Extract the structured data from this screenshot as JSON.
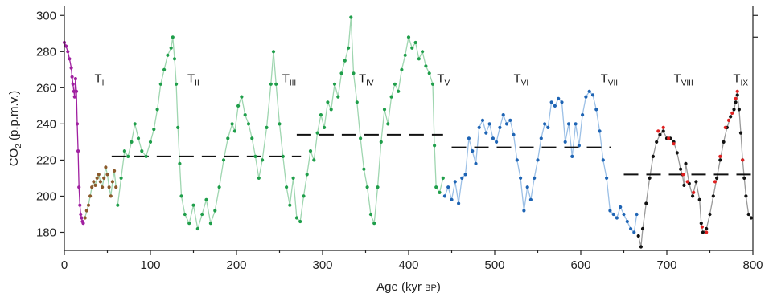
{
  "chart_data": {
    "type": "line",
    "title": "",
    "xlabel_main": "Age (kyr ",
    "xlabel_unit": "BP",
    "xlabel_close": ")",
    "ylabel_prefix": "CO",
    "ylabel_sub": "2",
    "ylabel_suffix": " (p.p.m.v.)",
    "xlim": [
      0,
      800
    ],
    "ylim": [
      170,
      305
    ],
    "xticks": [
      0,
      100,
      200,
      300,
      400,
      500,
      600,
      700,
      800
    ],
    "yticks": [
      180,
      200,
      220,
      240,
      260,
      280,
      300
    ],
    "colors": {
      "dome_c_recent": "#a020a0",
      "brown": "#8b5a2b",
      "green": "#1f9e4a",
      "blue": "#1e64b4",
      "black": "#111111",
      "red": "#e02020",
      "green_line": "#9fd6b0",
      "blue_line": "#9cc0e6",
      "black_line": "#999999"
    },
    "series": [
      {
        "color_key": "dome_c_recent",
        "line_key": "dome_c_recent",
        "points": [
          [
            0,
            285
          ],
          [
            2,
            283
          ],
          [
            4,
            280
          ],
          [
            6,
            276
          ],
          [
            8,
            271
          ],
          [
            9,
            266
          ],
          [
            10,
            262
          ],
          [
            11,
            258
          ],
          [
            12,
            255
          ],
          [
            13,
            265
          ],
          [
            14,
            258
          ],
          [
            15,
            240
          ],
          [
            16,
            225
          ],
          [
            17,
            205
          ],
          [
            18,
            195
          ],
          [
            19,
            190
          ],
          [
            20,
            188
          ],
          [
            21,
            186
          ],
          [
            22,
            185
          ]
        ]
      },
      {
        "color_key": "brown",
        "line_key": "green_line",
        "points": [
          [
            24,
            188
          ],
          [
            26,
            192
          ],
          [
            28,
            195
          ],
          [
            30,
            200
          ],
          [
            32,
            205
          ],
          [
            34,
            208
          ],
          [
            36,
            206
          ],
          [
            38,
            210
          ],
          [
            40,
            212
          ],
          [
            42,
            208
          ],
          [
            44,
            205
          ],
          [
            46,
            210
          ],
          [
            48,
            216
          ],
          [
            50,
            212
          ],
          [
            52,
            205
          ],
          [
            54,
            200
          ],
          [
            56,
            208
          ],
          [
            58,
            214
          ],
          [
            60,
            205
          ]
        ]
      },
      {
        "color_key": "green",
        "line_key": "green_line",
        "points": [
          [
            62,
            195
          ],
          [
            66,
            210
          ],
          [
            70,
            225
          ],
          [
            74,
            222
          ],
          [
            78,
            230
          ],
          [
            82,
            240
          ],
          [
            86,
            232
          ],
          [
            90,
            225
          ],
          [
            95,
            222
          ],
          [
            100,
            230
          ],
          [
            104,
            237
          ],
          [
            108,
            248
          ],
          [
            112,
            262
          ],
          [
            116,
            270
          ],
          [
            120,
            278
          ],
          [
            124,
            282
          ],
          [
            126,
            288
          ],
          [
            128,
            276
          ],
          [
            130,
            262
          ],
          [
            132,
            238
          ],
          [
            134,
            218
          ],
          [
            136,
            200
          ],
          [
            140,
            190
          ],
          [
            145,
            185
          ],
          [
            150,
            195
          ],
          [
            155,
            182
          ],
          [
            160,
            190
          ],
          [
            165,
            198
          ],
          [
            170,
            185
          ],
          [
            175,
            192
          ],
          [
            180,
            205
          ],
          [
            185,
            220
          ],
          [
            190,
            232
          ],
          [
            195,
            240
          ],
          [
            198,
            236
          ],
          [
            202,
            250
          ],
          [
            206,
            255
          ],
          [
            210,
            245
          ],
          [
            214,
            240
          ],
          [
            218,
            232
          ],
          [
            222,
            222
          ],
          [
            226,
            210
          ],
          [
            230,
            220
          ],
          [
            235,
            238
          ],
          [
            240,
            262
          ],
          [
            243,
            280
          ],
          [
            246,
            262
          ],
          [
            250,
            240
          ],
          [
            254,
            222
          ],
          [
            258,
            205
          ],
          [
            262,
            195
          ],
          [
            266,
            210
          ],
          [
            270,
            188
          ],
          [
            274,
            186
          ],
          [
            278,
            200
          ],
          [
            282,
            212
          ],
          [
            286,
            225
          ],
          [
            290,
            220
          ],
          [
            294,
            235
          ],
          [
            298,
            245
          ],
          [
            302,
            238
          ],
          [
            306,
            252
          ],
          [
            310,
            248
          ],
          [
            314,
            262
          ],
          [
            318,
            255
          ],
          [
            322,
            268
          ],
          [
            326,
            275
          ],
          [
            330,
            282
          ],
          [
            333,
            299
          ],
          [
            336,
            268
          ],
          [
            340,
            252
          ],
          [
            344,
            232
          ],
          [
            348,
            215
          ],
          [
            352,
            205
          ],
          [
            356,
            190
          ],
          [
            360,
            185
          ],
          [
            364,
            205
          ],
          [
            368,
            230
          ],
          [
            372,
            248
          ],
          [
            376,
            240
          ],
          [
            380,
            255
          ],
          [
            384,
            262
          ],
          [
            388,
            258
          ],
          [
            392,
            270
          ],
          [
            396,
            278
          ],
          [
            400,
            288
          ],
          [
            404,
            282
          ],
          [
            408,
            285
          ],
          [
            412,
            276
          ],
          [
            416,
            280
          ],
          [
            420,
            272
          ],
          [
            424,
            268
          ],
          [
            428,
            262
          ],
          [
            430,
            228
          ],
          [
            432,
            205
          ],
          [
            436,
            202
          ],
          [
            440,
            210
          ]
        ]
      },
      {
        "color_key": "blue",
        "line_key": "blue_line",
        "points": [
          [
            442,
            200
          ],
          [
            446,
            205
          ],
          [
            450,
            198
          ],
          [
            454,
            208
          ],
          [
            458,
            196
          ],
          [
            462,
            210
          ],
          [
            466,
            212
          ],
          [
            470,
            232
          ],
          [
            474,
            225
          ],
          [
            478,
            218
          ],
          [
            482,
            238
          ],
          [
            486,
            242
          ],
          [
            490,
            235
          ],
          [
            494,
            240
          ],
          [
            498,
            232
          ],
          [
            502,
            230
          ],
          [
            506,
            238
          ],
          [
            510,
            245
          ],
          [
            514,
            240
          ],
          [
            518,
            242
          ],
          [
            522,
            234
          ],
          [
            526,
            220
          ],
          [
            530,
            210
          ],
          [
            534,
            192
          ],
          [
            538,
            205
          ],
          [
            542,
            198
          ],
          [
            546,
            210
          ],
          [
            550,
            220
          ],
          [
            554,
            232
          ],
          [
            558,
            240
          ],
          [
            562,
            238
          ],
          [
            566,
            252
          ],
          [
            570,
            250
          ],
          [
            574,
            254
          ],
          [
            578,
            252
          ],
          [
            582,
            230
          ],
          [
            586,
            240
          ],
          [
            590,
            222
          ],
          [
            594,
            240
          ],
          [
            598,
            228
          ],
          [
            602,
            245
          ],
          [
            606,
            255
          ],
          [
            610,
            258
          ],
          [
            614,
            256
          ],
          [
            618,
            248
          ],
          [
            622,
            236
          ],
          [
            626,
            220
          ],
          [
            630,
            210
          ],
          [
            634,
            192
          ],
          [
            638,
            190
          ],
          [
            642,
            188
          ],
          [
            646,
            194
          ],
          [
            650,
            190
          ],
          [
            654,
            186
          ],
          [
            658,
            182
          ],
          [
            662,
            180
          ],
          [
            665,
            190
          ]
        ]
      },
      {
        "color_key": "black",
        "line_key": "black_line",
        "points": [
          [
            667,
            178
          ],
          [
            670,
            172
          ],
          [
            672,
            182
          ],
          [
            676,
            196
          ],
          [
            680,
            210
          ],
          [
            684,
            222
          ],
          [
            688,
            230
          ],
          [
            692,
            234
          ],
          [
            696,
            236
          ],
          [
            700,
            232
          ],
          [
            704,
            232
          ],
          [
            708,
            230
          ],
          [
            712,
            224
          ],
          [
            716,
            215
          ],
          [
            718,
            212
          ],
          [
            720,
            206
          ],
          [
            722,
            218
          ],
          [
            726,
            207
          ],
          [
            730,
            200
          ],
          [
            734,
            208
          ],
          [
            738,
            198
          ],
          [
            740,
            185
          ],
          [
            742,
            180
          ],
          [
            746,
            182
          ],
          [
            750,
            190
          ],
          [
            754,
            200
          ],
          [
            758,
            210
          ],
          [
            762,
            220
          ],
          [
            766,
            230
          ],
          [
            770,
            238
          ],
          [
            774,
            244
          ],
          [
            778,
            248
          ],
          [
            780,
            252
          ],
          [
            782,
            256
          ],
          [
            784,
            248
          ],
          [
            786,
            235
          ],
          [
            788,
            220
          ],
          [
            790,
            210
          ],
          [
            792,
            200
          ],
          [
            795,
            190
          ],
          [
            798,
            188
          ]
        ]
      },
      {
        "color_key": "red",
        "line_key": null,
        "points": [
          [
            690,
            236
          ],
          [
            696,
            238
          ],
          [
            702,
            232
          ],
          [
            708,
            229
          ],
          [
            719,
            212
          ],
          [
            724,
            208
          ],
          [
            731,
            202
          ],
          [
            741,
            183
          ],
          [
            746,
            180
          ],
          [
            756,
            208
          ],
          [
            762,
            222
          ],
          [
            768,
            238
          ],
          [
            772,
            242
          ],
          [
            776,
            246
          ],
          [
            780,
            254
          ],
          [
            782,
            258
          ],
          [
            788,
            220
          ]
        ]
      }
    ],
    "means": [
      {
        "x": [
          55,
          275
        ],
        "y": 222
      },
      {
        "x": [
          270,
          440
        ],
        "y": 234
      },
      {
        "x": [
          450,
          635
        ],
        "y": 227
      },
      {
        "x": [
          650,
          800
        ],
        "y": 212
      }
    ],
    "terminations": [
      {
        "base": "T",
        "sub": "I",
        "x": 35,
        "y": 263
      },
      {
        "base": "T",
        "sub": "II",
        "x": 143,
        "y": 263
      },
      {
        "base": "T",
        "sub": "III",
        "x": 253,
        "y": 263
      },
      {
        "base": "T",
        "sub": "IV",
        "x": 342,
        "y": 263
      },
      {
        "base": "T",
        "sub": "V",
        "x": 433,
        "y": 263
      },
      {
        "base": "T",
        "sub": "VI",
        "x": 522,
        "y": 263
      },
      {
        "base": "T",
        "sub": "VII",
        "x": 623,
        "y": 263
      },
      {
        "base": "T",
        "sub": "VIII",
        "x": 708,
        "y": 263
      },
      {
        "base": "T",
        "sub": "IX",
        "x": 777,
        "y": 263
      }
    ]
  }
}
